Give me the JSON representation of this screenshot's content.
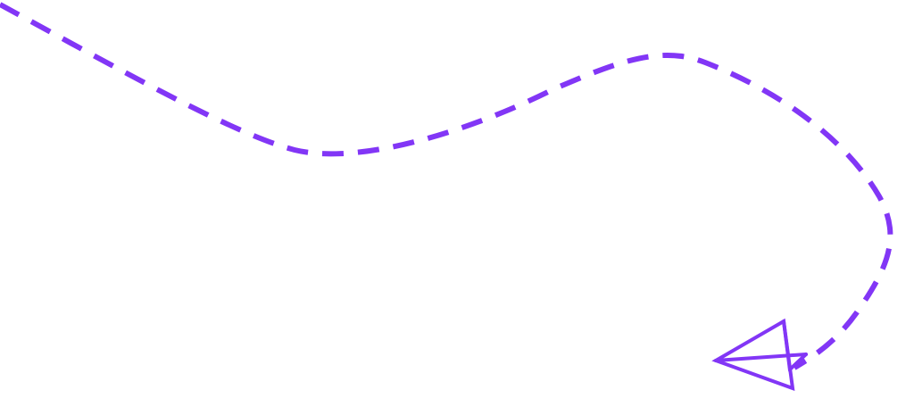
{
  "illustration": {
    "accent_color": "#8236F6",
    "background_color": "#FFFFFF",
    "elements": [
      {
        "name": "dashed-flight-path",
        "style": "dashed"
      },
      {
        "name": "paper-plane-icon",
        "style": "outline"
      }
    ]
  }
}
